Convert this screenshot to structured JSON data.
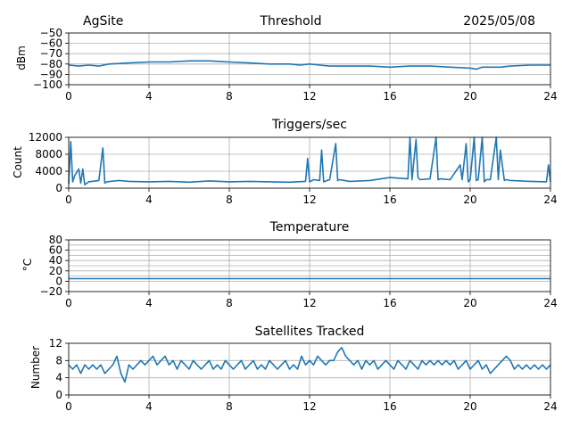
{
  "header": {
    "site": "AgSite",
    "date": "2025/05/08"
  },
  "series_color": "#1f77b4",
  "chart_data": [
    {
      "type": "line",
      "title": "Threshold",
      "ylabel": "dBm",
      "xlim": [
        0,
        24
      ],
      "ylim": [
        -100,
        -50
      ],
      "xticks": [
        0,
        4,
        8,
        12,
        16,
        20,
        24
      ],
      "yticks": [
        -100,
        -90,
        -80,
        -70,
        -60,
        -50
      ],
      "ytick_labels": [
        "−100",
        "−90",
        "−80",
        "−70",
        "−60",
        "−50"
      ],
      "grid": true,
      "series": [
        {
          "x": [
            0,
            0.5,
            1,
            1.5,
            2,
            3,
            4,
            5,
            6,
            7,
            8,
            9,
            10,
            11,
            11.5,
            12,
            12.5,
            13,
            14,
            15,
            16,
            17,
            18,
            19,
            20,
            20.3,
            20.6,
            21,
            21.5,
            22,
            23,
            24
          ],
          "values": [
            -81,
            -82,
            -81,
            -82,
            -80,
            -79,
            -78,
            -78,
            -77,
            -77,
            -78,
            -79,
            -80,
            -80,
            -81,
            -80,
            -81,
            -82,
            -82,
            -82,
            -83,
            -82,
            -82,
            -83,
            -84,
            -85,
            -83,
            -83,
            -83,
            -82,
            -81,
            -81
          ]
        }
      ]
    },
    {
      "type": "line",
      "title": "Triggers/sec",
      "ylabel": "Count",
      "xlim": [
        0,
        24
      ],
      "ylim": [
        0,
        12000
      ],
      "xticks": [
        0,
        4,
        8,
        12,
        16,
        20,
        24
      ],
      "yticks": [
        0,
        4000,
        8000,
        12000
      ],
      "ytick_labels": [
        "0",
        "4000",
        "8000",
        "12000"
      ],
      "grid": true,
      "series": [
        {
          "x": [
            0,
            0.1,
            0.2,
            0.3,
            0.5,
            0.6,
            0.7,
            0.8,
            1.0,
            1.5,
            1.7,
            1.8,
            1.9,
            2.5,
            3,
            4,
            5,
            6,
            7,
            8,
            9,
            10,
            11,
            11.8,
            11.9,
            12.0,
            12.2,
            12.5,
            12.6,
            12.7,
            13,
            13.3,
            13.4,
            13.5,
            14,
            15,
            16,
            16.9,
            17.0,
            17.1,
            17.3,
            17.4,
            17.5,
            18,
            18.3,
            18.4,
            18.5,
            19,
            19.5,
            19.6,
            19.8,
            19.9,
            20.0,
            20.2,
            20.3,
            20.4,
            20.6,
            20.7,
            20.8,
            21,
            21.3,
            21.4,
            21.5,
            21.7,
            21.8,
            22,
            23,
            23.8,
            23.9,
            24
          ],
          "values": [
            1000,
            11000,
            1500,
            3000,
            4500,
            1200,
            4500,
            800,
            1500,
            1800,
            9500,
            1200,
            1500,
            1800,
            1600,
            1500,
            1600,
            1400,
            1700,
            1500,
            1600,
            1500,
            1400,
            1600,
            7000,
            1500,
            2000,
            1800,
            9000,
            1500,
            2000,
            10500,
            1800,
            2000,
            1600,
            1800,
            2500,
            2200,
            12000,
            2000,
            11500,
            2500,
            2000,
            2200,
            12000,
            2000,
            2200,
            2000,
            5500,
            2000,
            10500,
            1500,
            2000,
            12000,
            1800,
            2000,
            12000,
            1500,
            2000,
            2000,
            12000,
            2000,
            9000,
            1800,
            2000,
            1800,
            1600,
            1500,
            5500,
            1500
          ]
        }
      ]
    },
    {
      "type": "line",
      "title": "Temperature",
      "ylabel": "°C",
      "xlim": [
        0,
        24
      ],
      "ylim": [
        -20,
        80
      ],
      "xticks": [
        0,
        4,
        8,
        12,
        16,
        20,
        24
      ],
      "yticks": [
        -20,
        0,
        20,
        40,
        60,
        80
      ],
      "ytick_labels": [
        "−20",
        "0",
        "20",
        "40",
        "60",
        "80"
      ],
      "extra_grid": [
        10,
        30,
        50,
        70
      ],
      "grid": true,
      "series": [
        {
          "x": [
            0,
            24
          ],
          "values": [
            5,
            5
          ]
        }
      ]
    },
    {
      "type": "line",
      "title": "Satellites Tracked",
      "ylabel": "Number",
      "xlim": [
        0,
        24
      ],
      "ylim": [
        0,
        12
      ],
      "xticks": [
        0,
        4,
        8,
        12,
        16,
        20,
        24
      ],
      "yticks": [
        0,
        4,
        8,
        12
      ],
      "ytick_labels": [
        "0",
        "4",
        "8",
        "12"
      ],
      "grid": true,
      "series": [
        {
          "x": [
            0,
            0.2,
            0.4,
            0.6,
            0.8,
            1.0,
            1.2,
            1.4,
            1.6,
            1.8,
            2.0,
            2.2,
            2.4,
            2.6,
            2.8,
            3.0,
            3.2,
            3.4,
            3.6,
            3.8,
            4.0,
            4.2,
            4.4,
            4.6,
            4.8,
            5.0,
            5.2,
            5.4,
            5.6,
            5.8,
            6.0,
            6.2,
            6.4,
            6.6,
            6.8,
            7.0,
            7.2,
            7.4,
            7.6,
            7.8,
            8.0,
            8.2,
            8.4,
            8.6,
            8.8,
            9.0,
            9.2,
            9.4,
            9.6,
            9.8,
            10.0,
            10.2,
            10.4,
            10.6,
            10.8,
            11.0,
            11.2,
            11.4,
            11.6,
            11.8,
            12.0,
            12.2,
            12.4,
            12.6,
            12.8,
            13.0,
            13.2,
            13.4,
            13.6,
            13.8,
            14.0,
            14.2,
            14.4,
            14.6,
            14.8,
            15.0,
            15.2,
            15.4,
            15.6,
            15.8,
            16.0,
            16.2,
            16.4,
            16.6,
            16.8,
            17.0,
            17.2,
            17.4,
            17.6,
            17.8,
            18.0,
            18.2,
            18.4,
            18.6,
            18.8,
            19.0,
            19.2,
            19.4,
            19.6,
            19.8,
            20.0,
            20.2,
            20.4,
            20.6,
            20.8,
            21.0,
            21.2,
            21.4,
            21.6,
            21.8,
            22.0,
            22.2,
            22.4,
            22.6,
            22.8,
            23.0,
            23.2,
            23.4,
            23.6,
            23.8,
            24.0
          ],
          "values": [
            7,
            6,
            7,
            5,
            7,
            6,
            7,
            6,
            7,
            5,
            6,
            7,
            9,
            5,
            3,
            7,
            6,
            7,
            8,
            7,
            8,
            9,
            7,
            8,
            9,
            7,
            8,
            6,
            8,
            7,
            6,
            8,
            7,
            6,
            7,
            8,
            6,
            7,
            6,
            8,
            7,
            6,
            7,
            8,
            6,
            7,
            8,
            6,
            7,
            6,
            8,
            7,
            6,
            7,
            8,
            6,
            7,
            6,
            9,
            7,
            8,
            7,
            9,
            8,
            7,
            8,
            8,
            10,
            11,
            9,
            8,
            7,
            8,
            6,
            8,
            7,
            8,
            6,
            7,
            8,
            7,
            6,
            8,
            7,
            6,
            8,
            7,
            6,
            8,
            7,
            8,
            7,
            8,
            7,
            8,
            7,
            8,
            6,
            7,
            8,
            6,
            7,
            8,
            6,
            7,
            5,
            6,
            7,
            8,
            9,
            8,
            6,
            7,
            6,
            7,
            6,
            7,
            6,
            7,
            6,
            7
          ]
        }
      ]
    }
  ]
}
